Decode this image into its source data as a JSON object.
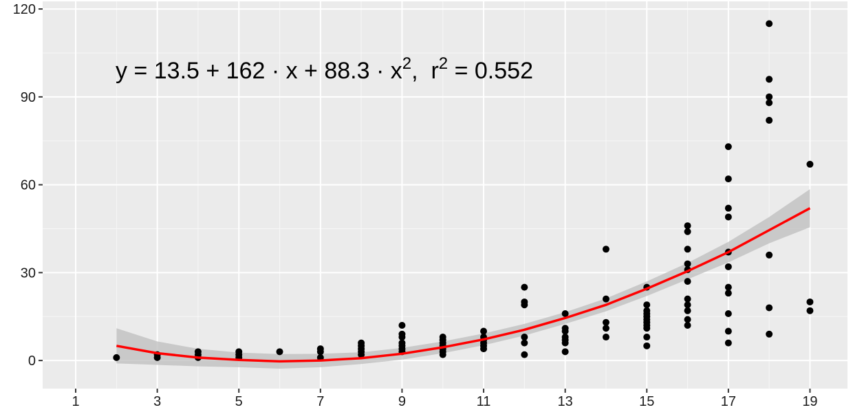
{
  "chart_data": {
    "type": "scatter",
    "annotation": [
      "y = 13.5 + 162 · x + 88.3 · x",
      "2",
      ",  r",
      "2",
      " = 0.552"
    ],
    "xlim": [
      0.19,
      19.92
    ],
    "ylim": [
      -9.6,
      122.6
    ],
    "xticks": [
      1,
      3,
      5,
      7,
      9,
      11,
      13,
      15,
      17,
      19
    ],
    "yticks": [
      0,
      30,
      60,
      90,
      120
    ],
    "grid": true,
    "points": {
      "color": "#000000",
      "x": [
        2,
        3,
        3,
        4,
        4,
        4,
        5,
        5,
        5,
        6,
        7,
        7,
        7,
        8,
        8,
        8,
        8,
        8,
        9,
        9,
        9,
        9,
        9,
        9,
        9,
        10,
        10,
        10,
        10,
        10,
        10,
        10,
        11,
        11,
        11,
        11,
        11,
        11,
        12,
        12,
        12,
        12,
        12,
        12,
        13,
        13,
        13,
        13,
        13,
        13,
        13,
        14,
        14,
        14,
        14,
        14,
        15,
        15,
        15,
        15,
        15,
        15,
        15,
        15,
        15,
        15,
        15,
        16,
        16,
        16,
        16,
        16,
        16,
        16,
        16,
        16,
        16,
        16,
        17,
        17,
        17,
        17,
        17,
        17,
        17,
        17,
        17,
        17,
        17,
        18,
        18,
        18,
        18,
        18,
        18,
        18,
        18,
        19,
        19,
        19
      ],
      "values": [
        1,
        1,
        2,
        1,
        2,
        3,
        1,
        2,
        3,
        3,
        1,
        3,
        4,
        2,
        3,
        4,
        5,
        6,
        3,
        4,
        5,
        6,
        8,
        9,
        12,
        2,
        3,
        4,
        5,
        6,
        7,
        8,
        4,
        5,
        6,
        7,
        8,
        10,
        2,
        6,
        8,
        19,
        20,
        25,
        3,
        6,
        7,
        8,
        10,
        11,
        16,
        8,
        11,
        13,
        21,
        38,
        5,
        8,
        11,
        12,
        13,
        14,
        15,
        16,
        17,
        19,
        25,
        12,
        14,
        17,
        19,
        21,
        27,
        31,
        33,
        38,
        44,
        46,
        6,
        10,
        16,
        23,
        25,
        32,
        37,
        49,
        52,
        62,
        73,
        9,
        18,
        36,
        82,
        88,
        90,
        96,
        115,
        17,
        20,
        67
      ]
    },
    "fit": {
      "color": "#ff0000",
      "band_color": "#bebebe",
      "x": [
        2,
        3,
        4,
        5,
        6,
        7,
        8,
        9,
        10,
        11,
        12,
        13,
        14,
        15,
        16,
        17,
        18,
        19
      ],
      "values": [
        5,
        2.5,
        1,
        0.2,
        -0.3,
        0,
        0.8,
        2.3,
        4.5,
        7.2,
        10.5,
        14.5,
        19,
        24.5,
        30.5,
        37,
        44.5,
        52
      ],
      "lower": [
        -1,
        -1.5,
        -2,
        -2.3,
        -2.8,
        -2.3,
        -1.2,
        0.3,
        2.5,
        5.2,
        8.5,
        12.5,
        16.8,
        22,
        27.7,
        33.5,
        40,
        45.5
      ],
      "upper": [
        11,
        6.5,
        4,
        2.7,
        2.2,
        2.3,
        2.8,
        4.3,
        6.5,
        9.2,
        12.5,
        16.5,
        21.2,
        27,
        33.3,
        40.5,
        49,
        58.5
      ]
    }
  }
}
